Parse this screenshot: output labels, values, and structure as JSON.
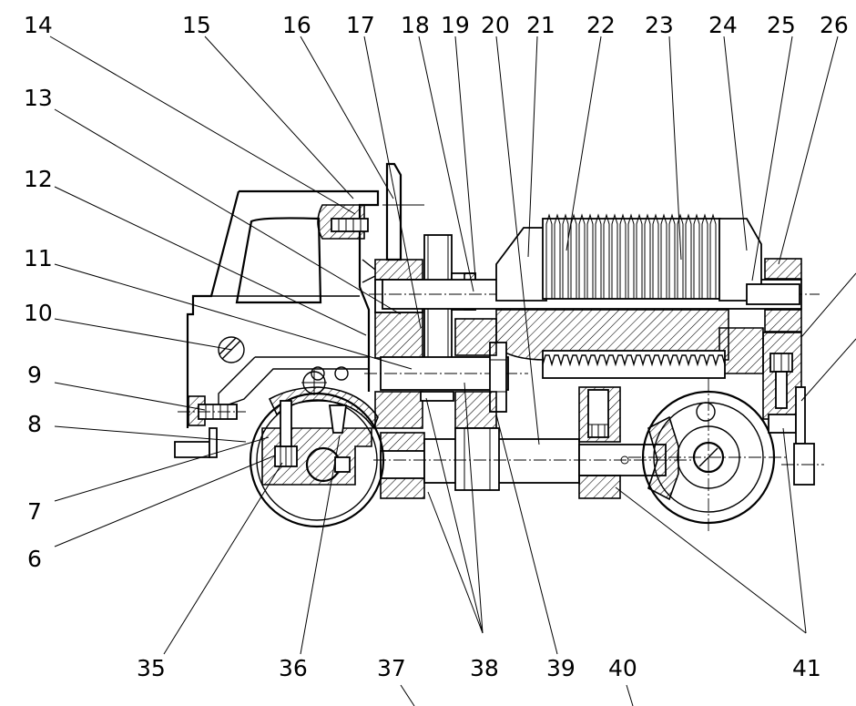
{
  "callouts": {
    "c6": "6",
    "c7": "7",
    "c8": "8",
    "c9": "9",
    "c10": "10",
    "c11": "11",
    "c12": "12",
    "c13": "13",
    "c14": "14",
    "c15": "15",
    "c16": "16",
    "c17": "17",
    "c18": "18",
    "c19": "19",
    "c20": "20",
    "c21": "21",
    "c22": "22",
    "c23": "23",
    "c24": "24",
    "c25": "25",
    "c26": "26",
    "c35": "35",
    "c36": "36",
    "c37": "37",
    "c38": "38",
    "c39": "39",
    "c40": "40",
    "c41": "41"
  }
}
